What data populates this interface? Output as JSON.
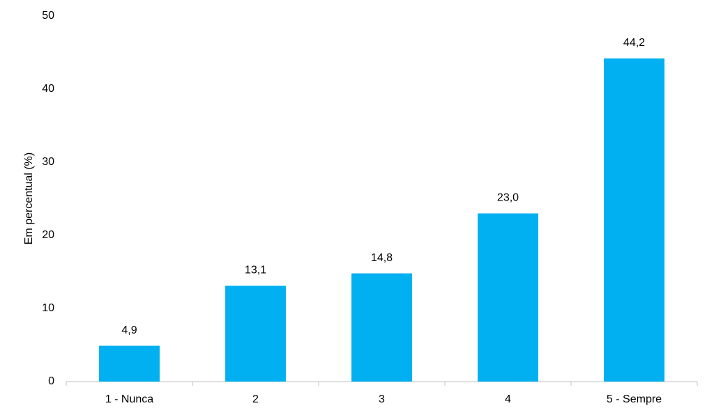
{
  "chart_data": {
    "type": "bar",
    "y_label": "Em percentual (%)",
    "categories": [
      "1 - Nunca",
      "2",
      "3",
      "4",
      "5 - Sempre"
    ],
    "values": [
      4.9,
      13.1,
      14.8,
      23.0,
      44.2
    ],
    "value_labels": [
      "4,9",
      "13,1",
      "14,8",
      "23,0",
      "44,2"
    ],
    "color": "#00b0f0",
    "ylim": [
      0,
      50
    ],
    "yticks": [
      0,
      10,
      20,
      30,
      40,
      50
    ],
    "grid": false
  }
}
